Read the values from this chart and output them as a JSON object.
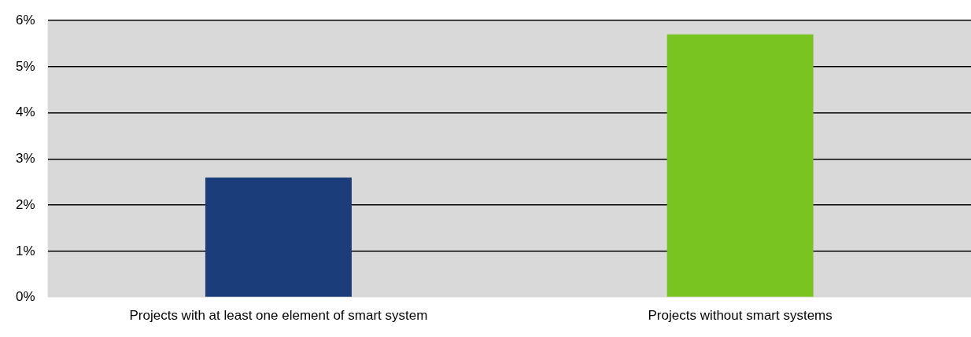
{
  "chart_data": {
    "type": "bar",
    "categories": [
      "Projects with at least one element of smart system",
      "Projects without smart systems"
    ],
    "values": [
      2.6,
      5.7
    ],
    "colors": [
      "#1b3d7a",
      "#7ac422"
    ],
    "ylim": [
      0,
      6
    ],
    "yticks": [
      {
        "value": 0,
        "label": "0%"
      },
      {
        "value": 1,
        "label": "1%"
      },
      {
        "value": 2,
        "label": "2%"
      },
      {
        "value": 3,
        "label": "3%"
      },
      {
        "value": 4,
        "label": "4%"
      },
      {
        "value": 5,
        "label": "5%"
      },
      {
        "value": 6,
        "label": "6%"
      }
    ],
    "grid": "y",
    "legend": false
  }
}
